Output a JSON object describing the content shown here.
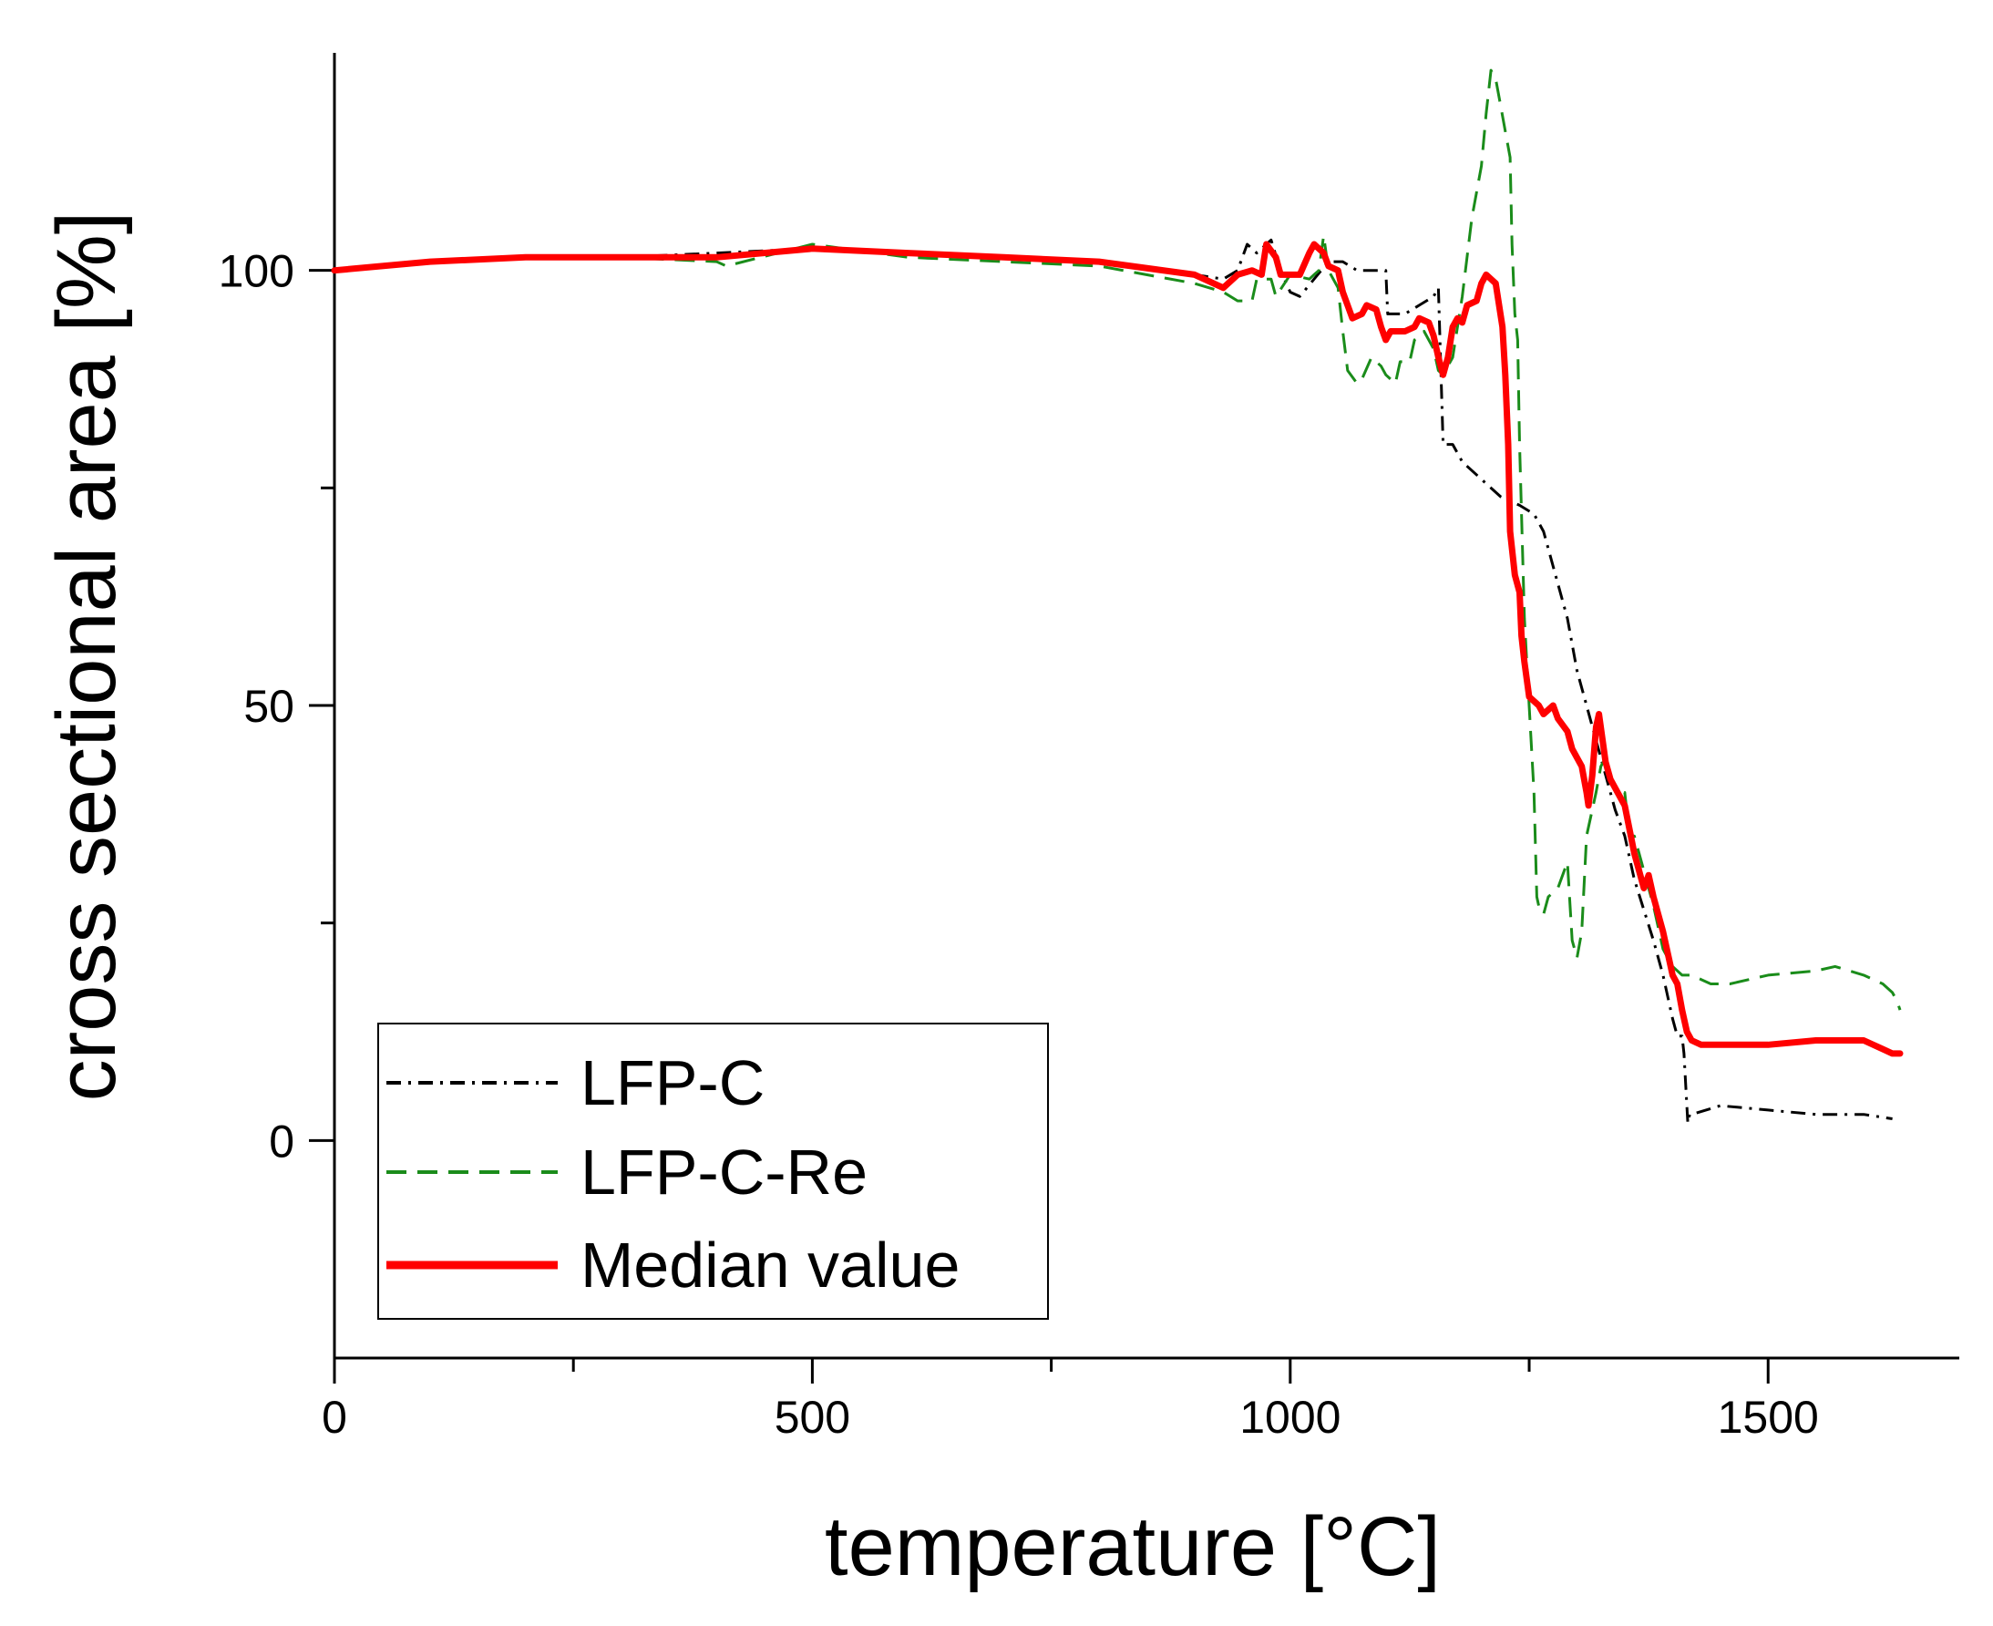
{
  "chart_data": {
    "type": "line",
    "title": "",
    "xlabel": "temperature [°C]",
    "ylabel": "cross sectional area [%]",
    "xlim": [
      0,
      1700
    ],
    "ylim": [
      -25,
      125
    ],
    "xticks": [
      0,
      500,
      1000,
      1500
    ],
    "xtick_labels": [
      "0",
      "500",
      "1000",
      "1500"
    ],
    "yticks": [
      0,
      50,
      100
    ],
    "ytick_labels": [
      "0",
      "50",
      "100"
    ],
    "x_minor_ticks": [
      250,
      750,
      1250
    ],
    "y_minor_ticks": [
      25,
      75
    ],
    "legend_position": "bottom-left",
    "grid": false,
    "series": [
      {
        "name": "LFP-C",
        "color": "#000000",
        "style": "dash-dot",
        "points": [
          [
            0,
            100
          ],
          [
            100,
            101
          ],
          [
            200,
            101.5
          ],
          [
            300,
            101.5
          ],
          [
            400,
            102
          ],
          [
            500,
            102.5
          ],
          [
            600,
            102
          ],
          [
            700,
            101.5
          ],
          [
            800,
            101
          ],
          [
            900,
            99.5
          ],
          [
            930,
            99
          ],
          [
            945,
            100
          ],
          [
            955,
            103
          ],
          [
            965,
            102
          ],
          [
            980,
            103.5
          ],
          [
            990,
            100
          ],
          [
            1000,
            97.5
          ],
          [
            1010,
            97
          ],
          [
            1025,
            99
          ],
          [
            1040,
            101
          ],
          [
            1055,
            101
          ],
          [
            1070,
            100
          ],
          [
            1080,
            100
          ],
          [
            1100,
            100
          ],
          [
            1102,
            95
          ],
          [
            1110,
            95
          ],
          [
            1120,
            95
          ],
          [
            1135,
            96
          ],
          [
            1150,
            97
          ],
          [
            1155,
            98
          ],
          [
            1160,
            80
          ],
          [
            1170,
            80
          ],
          [
            1180,
            78
          ],
          [
            1200,
            76
          ],
          [
            1220,
            74
          ],
          [
            1240,
            73
          ],
          [
            1255,
            72
          ],
          [
            1265,
            70
          ],
          [
            1280,
            64
          ],
          [
            1290,
            60
          ],
          [
            1300,
            54
          ],
          [
            1310,
            50
          ],
          [
            1320,
            46
          ],
          [
            1330,
            42
          ],
          [
            1340,
            38
          ],
          [
            1350,
            35
          ],
          [
            1360,
            30
          ],
          [
            1380,
            23
          ],
          [
            1390,
            19
          ],
          [
            1400,
            14
          ],
          [
            1405,
            12
          ],
          [
            1410,
            12
          ],
          [
            1412,
            10
          ],
          [
            1416,
            2
          ],
          [
            1418,
            3
          ],
          [
            1420,
            3
          ],
          [
            1450,
            4
          ],
          [
            1500,
            3.5
          ],
          [
            1550,
            3
          ],
          [
            1600,
            3
          ],
          [
            1630,
            2.5
          ]
        ]
      },
      {
        "name": "LFP-C-Re",
        "color": "#1a8c1a",
        "style": "dashed",
        "points": [
          [
            0,
            100
          ],
          [
            100,
            101
          ],
          [
            200,
            101.5
          ],
          [
            300,
            101.5
          ],
          [
            400,
            101
          ],
          [
            410,
            100.5
          ],
          [
            500,
            103
          ],
          [
            600,
            101.5
          ],
          [
            700,
            101
          ],
          [
            800,
            100.5
          ],
          [
            900,
            98.5
          ],
          [
            930,
            97.5
          ],
          [
            945,
            96.5
          ],
          [
            960,
            96.5
          ],
          [
            965,
            99
          ],
          [
            980,
            99
          ],
          [
            985,
            97
          ],
          [
            1000,
            99.5
          ],
          [
            1020,
            99
          ],
          [
            1025,
            99.5
          ],
          [
            1030,
            100
          ],
          [
            1035,
            104
          ],
          [
            1040,
            100
          ],
          [
            1050,
            98
          ],
          [
            1055,
            93
          ],
          [
            1060,
            88.5
          ],
          [
            1070,
            87
          ],
          [
            1075,
            87.5
          ],
          [
            1085,
            90
          ],
          [
            1095,
            89
          ],
          [
            1100,
            88
          ],
          [
            1110,
            87
          ],
          [
            1115,
            89.5
          ],
          [
            1125,
            89.5
          ],
          [
            1130,
            92
          ],
          [
            1140,
            93
          ],
          [
            1150,
            91
          ],
          [
            1155,
            88.5
          ],
          [
            1160,
            88
          ],
          [
            1170,
            90
          ],
          [
            1180,
            97
          ],
          [
            1190,
            106
          ],
          [
            1200,
            112
          ],
          [
            1205,
            118
          ],
          [
            1210,
            123
          ],
          [
            1215,
            122
          ],
          [
            1220,
            119
          ],
          [
            1225,
            116
          ],
          [
            1230,
            113
          ],
          [
            1232,
            103
          ],
          [
            1235,
            95
          ],
          [
            1238,
            92
          ],
          [
            1240,
            80
          ],
          [
            1245,
            60
          ],
          [
            1250,
            50
          ],
          [
            1255,
            40
          ],
          [
            1258,
            28
          ],
          [
            1260,
            27
          ],
          [
            1265,
            26
          ],
          [
            1270,
            28
          ],
          [
            1280,
            29
          ],
          [
            1290,
            32
          ],
          [
            1295,
            23
          ],
          [
            1300,
            21
          ],
          [
            1305,
            24
          ],
          [
            1310,
            35
          ],
          [
            1320,
            40
          ],
          [
            1325,
            43
          ],
          [
            1330,
            44
          ],
          [
            1340,
            40
          ],
          [
            1350,
            40
          ],
          [
            1355,
            35
          ],
          [
            1360,
            35
          ],
          [
            1370,
            31
          ],
          [
            1380,
            27
          ],
          [
            1390,
            22
          ],
          [
            1400,
            20
          ],
          [
            1410,
            19
          ],
          [
            1420,
            19
          ],
          [
            1430,
            18.5
          ],
          [
            1440,
            18
          ],
          [
            1460,
            18
          ],
          [
            1480,
            18.5
          ],
          [
            1500,
            19
          ],
          [
            1550,
            19.5
          ],
          [
            1570,
            20
          ],
          [
            1600,
            19
          ],
          [
            1620,
            18
          ],
          [
            1630,
            17
          ],
          [
            1635,
            16
          ],
          [
            1638,
            15
          ]
        ]
      },
      {
        "name": "Median value",
        "color": "#ff0000",
        "style": "solid",
        "points": [
          [
            0,
            100
          ],
          [
            100,
            101
          ],
          [
            200,
            101.5
          ],
          [
            300,
            101.5
          ],
          [
            400,
            101.5
          ],
          [
            500,
            102.5
          ],
          [
            600,
            102
          ],
          [
            700,
            101.5
          ],
          [
            800,
            101
          ],
          [
            900,
            99.5
          ],
          [
            930,
            98
          ],
          [
            945,
            99.5
          ],
          [
            960,
            100
          ],
          [
            970,
            99.5
          ],
          [
            975,
            103
          ],
          [
            985,
            101.5
          ],
          [
            990,
            99.5
          ],
          [
            1000,
            99.5
          ],
          [
            1010,
            99.5
          ],
          [
            1020,
            102
          ],
          [
            1025,
            103
          ],
          [
            1035,
            102
          ],
          [
            1040,
            100.5
          ],
          [
            1050,
            100
          ],
          [
            1055,
            97.5
          ],
          [
            1060,
            96
          ],
          [
            1065,
            94.5
          ],
          [
            1075,
            95
          ],
          [
            1080,
            96
          ],
          [
            1090,
            95.5
          ],
          [
            1095,
            93.5
          ],
          [
            1100,
            92
          ],
          [
            1105,
            93
          ],
          [
            1120,
            93
          ],
          [
            1130,
            93.5
          ],
          [
            1135,
            94.5
          ],
          [
            1145,
            94
          ],
          [
            1150,
            92.5
          ],
          [
            1155,
            90
          ],
          [
            1160,
            88
          ],
          [
            1165,
            90
          ],
          [
            1170,
            93.5
          ],
          [
            1175,
            94.5
          ],
          [
            1180,
            94
          ],
          [
            1185,
            96
          ],
          [
            1195,
            96.5
          ],
          [
            1200,
            98.5
          ],
          [
            1205,
            99.5
          ],
          [
            1210,
            99
          ],
          [
            1215,
            98.5
          ],
          [
            1222,
            93.5
          ],
          [
            1225,
            88
          ],
          [
            1228,
            80
          ],
          [
            1230,
            70
          ],
          [
            1235,
            65
          ],
          [
            1240,
            63
          ],
          [
            1242,
            58
          ],
          [
            1245,
            55
          ],
          [
            1250,
            51
          ],
          [
            1260,
            50
          ],
          [
            1265,
            49
          ],
          [
            1275,
            50
          ],
          [
            1280,
            48.5
          ],
          [
            1290,
            47
          ],
          [
            1295,
            45
          ],
          [
            1305,
            43
          ],
          [
            1310,
            40
          ],
          [
            1312,
            38.5
          ],
          [
            1316,
            42
          ],
          [
            1320,
            47.5
          ],
          [
            1323,
            49
          ],
          [
            1330,
            43.5
          ],
          [
            1335,
            41.5
          ],
          [
            1350,
            38.5
          ],
          [
            1360,
            33
          ],
          [
            1370,
            29
          ],
          [
            1375,
            30.5
          ],
          [
            1380,
            28
          ],
          [
            1390,
            24
          ],
          [
            1400,
            19
          ],
          [
            1405,
            18
          ],
          [
            1410,
            15
          ],
          [
            1415,
            12.5
          ],
          [
            1420,
            11.5
          ],
          [
            1430,
            11
          ],
          [
            1500,
            11
          ],
          [
            1550,
            11.5
          ],
          [
            1600,
            11.5
          ],
          [
            1620,
            10.5
          ],
          [
            1630,
            10
          ],
          [
            1638,
            10
          ]
        ]
      }
    ]
  }
}
